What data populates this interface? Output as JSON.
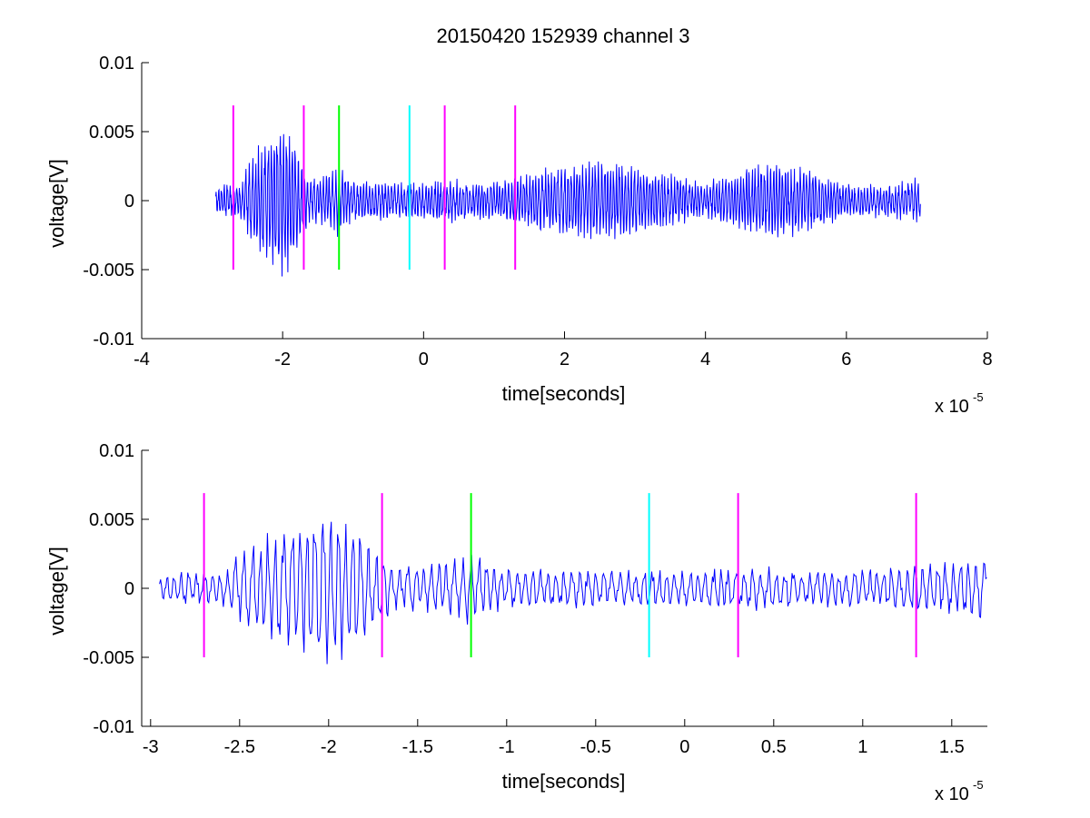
{
  "figure": {
    "title": "20150420 152939 channel 3"
  },
  "chart_data": [
    {
      "type": "line",
      "title": "20150420 152939 channel 3",
      "xlabel": "time[seconds]",
      "ylabel": "voltage[V]",
      "x_multiplier_label": "x 10",
      "x_multiplier_exponent": "-5",
      "xlim": [
        -4,
        8
      ],
      "ylim": [
        -0.01,
        0.01
      ],
      "xticks": [
        -4,
        -2,
        0,
        2,
        4,
        6,
        8
      ],
      "xtick_labels": [
        "-4",
        "-2",
        "0",
        "2",
        "4",
        "6",
        "8"
      ],
      "yticks": [
        -0.01,
        -0.005,
        0,
        0.005,
        0.01
      ],
      "ytick_labels": [
        "-0.01",
        "-0.005",
        "0",
        "0.005",
        "0.01"
      ],
      "grid": false,
      "signal": {
        "color": "#0000ff",
        "x_start": -2.95,
        "x_end": 7.05,
        "envelope": [
          [
            -2.95,
            0.001
          ],
          [
            -2.6,
            0.0012
          ],
          [
            -2.5,
            0.0025
          ],
          [
            -2.4,
            0.0035
          ],
          [
            -2.3,
            0.004
          ],
          [
            -2.2,
            0.005
          ],
          [
            -2.1,
            0.0052
          ],
          [
            -2.0,
            0.006
          ],
          [
            -1.9,
            0.0052
          ],
          [
            -1.8,
            0.004
          ],
          [
            -1.7,
            0.0025
          ],
          [
            -1.6,
            0.0014
          ],
          [
            -1.2,
            0.0025
          ],
          [
            -1.0,
            0.0015
          ],
          [
            -0.2,
            0.0012
          ],
          [
            0.3,
            0.0015
          ],
          [
            1.0,
            0.0012
          ],
          [
            1.5,
            0.002
          ],
          [
            2.0,
            0.0025
          ],
          [
            2.5,
            0.0028
          ],
          [
            3.0,
            0.0025
          ],
          [
            3.5,
            0.0018
          ],
          [
            4.0,
            0.0012
          ],
          [
            4.5,
            0.0022
          ],
          [
            5.0,
            0.0028
          ],
          [
            5.5,
            0.0022
          ],
          [
            6.0,
            0.0012
          ],
          [
            6.5,
            0.001
          ],
          [
            7.05,
            0.0015
          ]
        ]
      },
      "markers": [
        {
          "x": -2.7,
          "y_low": -0.005,
          "y_high": 0.0069,
          "color": "#ff00ff"
        },
        {
          "x": -1.7,
          "y_low": -0.005,
          "y_high": 0.0069,
          "color": "#ff00ff"
        },
        {
          "x": -1.2,
          "y_low": -0.005,
          "y_high": 0.0069,
          "color": "#00ff00"
        },
        {
          "x": -0.2,
          "y_low": -0.005,
          "y_high": 0.0069,
          "color": "#00ffff"
        },
        {
          "x": 0.3,
          "y_low": -0.005,
          "y_high": 0.0069,
          "color": "#ff00ff"
        },
        {
          "x": 1.3,
          "y_low": -0.005,
          "y_high": 0.0069,
          "color": "#ff00ff"
        }
      ]
    },
    {
      "type": "line",
      "title": "",
      "xlabel": "time[seconds]",
      "ylabel": "voltage[V]",
      "x_multiplier_label": "x 10",
      "x_multiplier_exponent": "-5",
      "xlim": [
        -3.05,
        1.7
      ],
      "ylim": [
        -0.01,
        0.01
      ],
      "xticks": [
        -3,
        -2.5,
        -2,
        -1.5,
        -1,
        -0.5,
        0,
        0.5,
        1,
        1.5
      ],
      "xtick_labels": [
        "-3",
        "-2.5",
        "-2",
        "-1.5",
        "-1",
        "-0.5",
        "0",
        "0.5",
        "1",
        "1.5"
      ],
      "yticks": [
        -0.01,
        -0.005,
        0,
        0.005,
        0.01
      ],
      "ytick_labels": [
        "-0.01",
        "-0.005",
        "0",
        "0.005",
        "0.01"
      ],
      "grid": false,
      "signal": {
        "color": "#0000ff",
        "x_start": -2.95,
        "x_end": 1.7,
        "envelope": [
          [
            -2.95,
            0.0008
          ],
          [
            -2.6,
            0.0012
          ],
          [
            -2.5,
            0.0025
          ],
          [
            -2.4,
            0.0035
          ],
          [
            -2.3,
            0.004
          ],
          [
            -2.2,
            0.0045
          ],
          [
            -2.1,
            0.0055
          ],
          [
            -2.0,
            0.006
          ],
          [
            -1.9,
            0.0055
          ],
          [
            -1.8,
            0.0045
          ],
          [
            -1.7,
            0.0025
          ],
          [
            -1.6,
            0.0014
          ],
          [
            -1.4,
            0.0018
          ],
          [
            -1.2,
            0.0028
          ],
          [
            -1.0,
            0.0015
          ],
          [
            -0.5,
            0.0012
          ],
          [
            -0.2,
            0.0008
          ],
          [
            0.0,
            0.0012
          ],
          [
            0.3,
            0.0015
          ],
          [
            0.8,
            0.001
          ],
          [
            1.3,
            0.001
          ],
          [
            1.7,
            0.0012
          ]
        ]
      },
      "markers": [
        {
          "x": -2.7,
          "y_low": -0.005,
          "y_high": 0.0069,
          "color": "#ff00ff"
        },
        {
          "x": -1.7,
          "y_low": -0.005,
          "y_high": 0.0069,
          "color": "#ff00ff"
        },
        {
          "x": -1.2,
          "y_low": -0.005,
          "y_high": 0.0069,
          "color": "#00ff00"
        },
        {
          "x": -0.2,
          "y_low": -0.005,
          "y_high": 0.0069,
          "color": "#00ffff"
        },
        {
          "x": 0.3,
          "y_low": -0.005,
          "y_high": 0.0069,
          "color": "#ff00ff"
        },
        {
          "x": 1.3,
          "y_low": -0.005,
          "y_high": 0.0069,
          "color": "#ff00ff"
        }
      ]
    }
  ]
}
